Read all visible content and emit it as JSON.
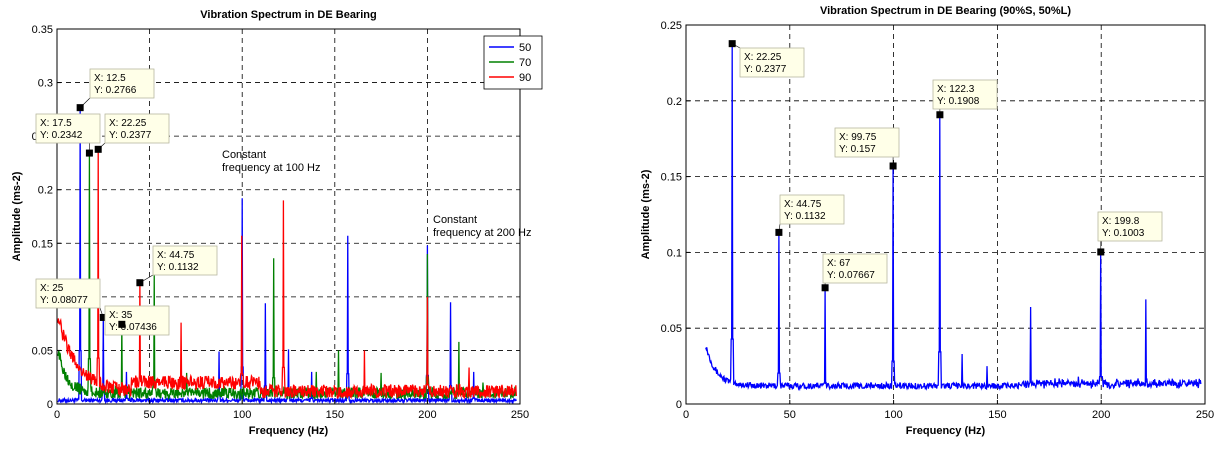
{
  "chart_data": [
    {
      "type": "line",
      "title": "Vibration Spectrum in DE Bearing",
      "xlabel": "Frequency (Hz)",
      "ylabel": "Amplitude (ms-2)",
      "xlim": [
        0,
        250
      ],
      "ylim": [
        0,
        0.35
      ],
      "xticks": [
        "0",
        "50",
        "100",
        "150",
        "200",
        "250"
      ],
      "yticks": [
        "0",
        "0.05",
        "0.1",
        "0.15",
        "0.2",
        "0.25",
        "0.3",
        "0.35"
      ],
      "grid": true,
      "legend_position": "top-right",
      "series": [
        {
          "name": "50",
          "color": "#0000ff",
          "baseline": 0.004,
          "peaks": [
            [
              12.5,
              0.2766
            ],
            [
              25,
              0.08077
            ],
            [
              37.5,
              0.03
            ],
            [
              87.5,
              0.049
            ],
            [
              100,
              0.192
            ],
            [
              112.5,
              0.094
            ],
            [
              125,
              0.051
            ],
            [
              137.5,
              0.03
            ],
            [
              157,
              0.157
            ],
            [
              200,
              0.148
            ],
            [
              212.5,
              0.095
            ],
            [
              225,
              0.03
            ]
          ]
        },
        {
          "name": "70",
          "color": "#008000",
          "baseline": 0.012,
          "peaks": [
            [
              17.5,
              0.2342
            ],
            [
              35,
              0.07436
            ],
            [
              52.5,
              0.12
            ],
            [
              70,
              0.029
            ],
            [
              87.5,
              0.014
            ],
            [
              117,
              0.136
            ],
            [
              140,
              0.03
            ],
            [
              152,
              0.05
            ],
            [
              175,
              0.029
            ],
            [
              200,
              0.14
            ],
            [
              217,
              0.058
            ],
            [
              230,
              0.02
            ]
          ]
        },
        {
          "name": "90",
          "color": "#ff0000",
          "baseline": 0.014,
          "peaks": [
            [
              22.25,
              0.2377
            ],
            [
              44.75,
              0.1132
            ],
            [
              67,
              0.076
            ],
            [
              99.75,
              0.157
            ],
            [
              122.3,
              0.19
            ],
            [
              166,
              0.05
            ],
            [
              200,
              0.1
            ],
            [
              222.5,
              0.034
            ]
          ]
        }
      ],
      "datatips": [
        {
          "x": 12.5,
          "y": 0.2766,
          "lines": [
            "X: 12.5",
            "Y: 0.2766"
          ]
        },
        {
          "x": 17.5,
          "y": 0.2342,
          "lines": [
            "X: 17.5",
            "Y: 0.2342"
          ]
        },
        {
          "x": 22.25,
          "y": 0.2377,
          "lines": [
            "X: 22.25",
            "Y: 0.2377"
          ]
        },
        {
          "x": 44.75,
          "y": 0.1132,
          "lines": [
            "X: 44.75",
            "Y: 0.1132"
          ]
        },
        {
          "x": 25,
          "y": 0.08077,
          "lines": [
            "X: 25",
            "Y: 0.08077"
          ]
        },
        {
          "x": 35,
          "y": 0.07436,
          "lines": [
            "X: 35",
            "Y: 0.07436"
          ]
        }
      ],
      "annotations": [
        {
          "lines": [
            "Constant",
            "frequency at 100 Hz"
          ]
        },
        {
          "lines": [
            "Constant",
            "frequency at 200 Hz"
          ]
        }
      ]
    },
    {
      "type": "line",
      "title": "Vibration Spectrum in DE Bearing (90%S, 50%L)",
      "xlabel": "Frequency (Hz)",
      "ylabel": "Amplitude (ms-2)",
      "xlim": [
        0,
        250
      ],
      "ylim": [
        0,
        0.25
      ],
      "xticks": [
        "0",
        "50",
        "100",
        "150",
        "200",
        "250"
      ],
      "yticks": [
        "0",
        "0.05",
        "0.1",
        "0.15",
        "0.2",
        "0.25"
      ],
      "grid": true,
      "series": [
        {
          "color": "#0000ff",
          "baseline": 0.01,
          "peaks": [
            [
              22.25,
              0.2377
            ],
            [
              44.75,
              0.1132
            ],
            [
              67,
              0.07667
            ],
            [
              99.75,
              0.157
            ],
            [
              122.3,
              0.1908
            ],
            [
              133,
              0.033
            ],
            [
              145,
              0.025
            ],
            [
              166,
              0.064
            ],
            [
              189,
              0.018
            ],
            [
              199.8,
              0.1003
            ],
            [
              211,
              0.014
            ],
            [
              221.5,
              0.069
            ],
            [
              234,
              0.014
            ]
          ]
        }
      ],
      "datatips": [
        {
          "x": 22.25,
          "y": 0.2377,
          "lines": [
            "X: 22.25",
            "Y: 0.2377"
          ]
        },
        {
          "x": 44.75,
          "y": 0.1132,
          "lines": [
            "X: 44.75",
            "Y: 0.1132"
          ]
        },
        {
          "x": 67,
          "y": 0.07667,
          "lines": [
            "X: 67",
            "Y: 0.07667"
          ]
        },
        {
          "x": 99.75,
          "y": 0.157,
          "lines": [
            "X: 99.75",
            "Y: 0.157"
          ]
        },
        {
          "x": 122.3,
          "y": 0.1908,
          "lines": [
            "X: 122.3",
            "Y: 0.1908"
          ]
        },
        {
          "x": 199.8,
          "y": 0.1003,
          "lines": [
            "X: 199.8",
            "Y: 0.1003"
          ]
        }
      ]
    }
  ]
}
